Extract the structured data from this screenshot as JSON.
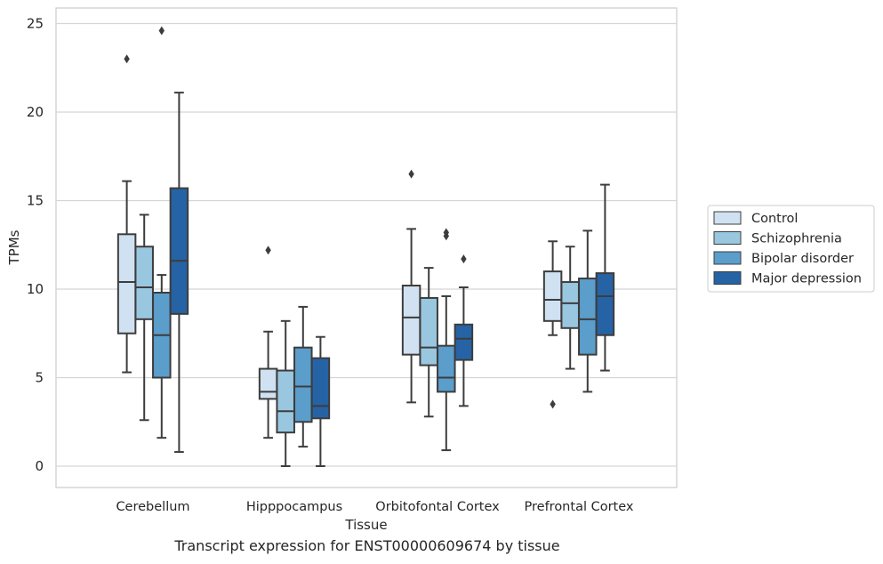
{
  "caption": "Transcript expression for ENST00000609674 by tissue",
  "chart_data": {
    "type": "boxplot",
    "xlabel": "Tissue",
    "ylabel": "TPMs",
    "ylim": [
      -1.2,
      25.9
    ],
    "yticks": [
      0,
      5,
      10,
      15,
      20,
      25
    ],
    "grid": "horizontal",
    "legend_position": "right",
    "categories": [
      "Cerebellum",
      "Hipppocampus",
      "Orbitofontal Cortex",
      "Prefrontal Cortex"
    ],
    "series": [
      {
        "name": "Control",
        "color": "#d0e1f1",
        "boxes": [
          {
            "whisker_low": 5.3,
            "q1": 7.5,
            "median": 10.4,
            "q3": 13.1,
            "whisker_high": 16.1,
            "outliers": [
              23.0
            ]
          },
          {
            "whisker_low": 1.6,
            "q1": 3.8,
            "median": 4.2,
            "q3": 5.5,
            "whisker_high": 7.6,
            "outliers": [
              12.2
            ]
          },
          {
            "whisker_low": 3.6,
            "q1": 6.3,
            "median": 8.4,
            "q3": 10.2,
            "whisker_high": 13.4,
            "outliers": [
              16.5
            ]
          },
          {
            "whisker_low": 7.4,
            "q1": 8.2,
            "median": 9.4,
            "q3": 11.0,
            "whisker_high": 12.7,
            "outliers": [
              3.5
            ]
          }
        ]
      },
      {
        "name": "Schizophrenia",
        "color": "#9ac7e0",
        "boxes": [
          {
            "whisker_low": 2.6,
            "q1": 8.3,
            "median": 10.1,
            "q3": 12.4,
            "whisker_high": 14.2,
            "outliers": []
          },
          {
            "whisker_low": 0.0,
            "q1": 1.9,
            "median": 3.1,
            "q3": 5.4,
            "whisker_high": 8.2,
            "outliers": []
          },
          {
            "whisker_low": 2.8,
            "q1": 5.7,
            "median": 6.7,
            "q3": 9.5,
            "whisker_high": 11.2,
            "outliers": []
          },
          {
            "whisker_low": 5.5,
            "q1": 7.8,
            "median": 9.2,
            "q3": 10.4,
            "whisker_high": 12.4,
            "outliers": []
          }
        ]
      },
      {
        "name": "Bipolar disorder",
        "color": "#5b9dcb",
        "boxes": [
          {
            "whisker_low": 1.6,
            "q1": 5.0,
            "median": 7.4,
            "q3": 9.8,
            "whisker_high": 10.8,
            "outliers": [
              24.6
            ]
          },
          {
            "whisker_low": 1.1,
            "q1": 2.5,
            "median": 4.5,
            "q3": 6.7,
            "whisker_high": 9.0,
            "outliers": []
          },
          {
            "whisker_low": 0.9,
            "q1": 4.2,
            "median": 5.0,
            "q3": 6.8,
            "whisker_high": 9.6,
            "outliers": [
              13.2,
              13.0
            ]
          },
          {
            "whisker_low": 4.2,
            "q1": 6.3,
            "median": 8.3,
            "q3": 10.6,
            "whisker_high": 13.3,
            "outliers": []
          }
        ]
      },
      {
        "name": "Major depression",
        "color": "#2563a5",
        "boxes": [
          {
            "whisker_low": 0.8,
            "q1": 8.6,
            "median": 11.6,
            "q3": 15.7,
            "whisker_high": 21.1,
            "outliers": []
          },
          {
            "whisker_low": 0.0,
            "q1": 2.7,
            "median": 3.4,
            "q3": 6.1,
            "whisker_high": 7.3,
            "outliers": []
          },
          {
            "whisker_low": 3.4,
            "q1": 6.0,
            "median": 7.2,
            "q3": 8.0,
            "whisker_high": 10.1,
            "outliers": [
              11.7
            ]
          },
          {
            "whisker_low": 5.4,
            "q1": 7.4,
            "median": 9.6,
            "q3": 10.9,
            "whisker_high": 15.9,
            "outliers": []
          }
        ]
      }
    ]
  }
}
